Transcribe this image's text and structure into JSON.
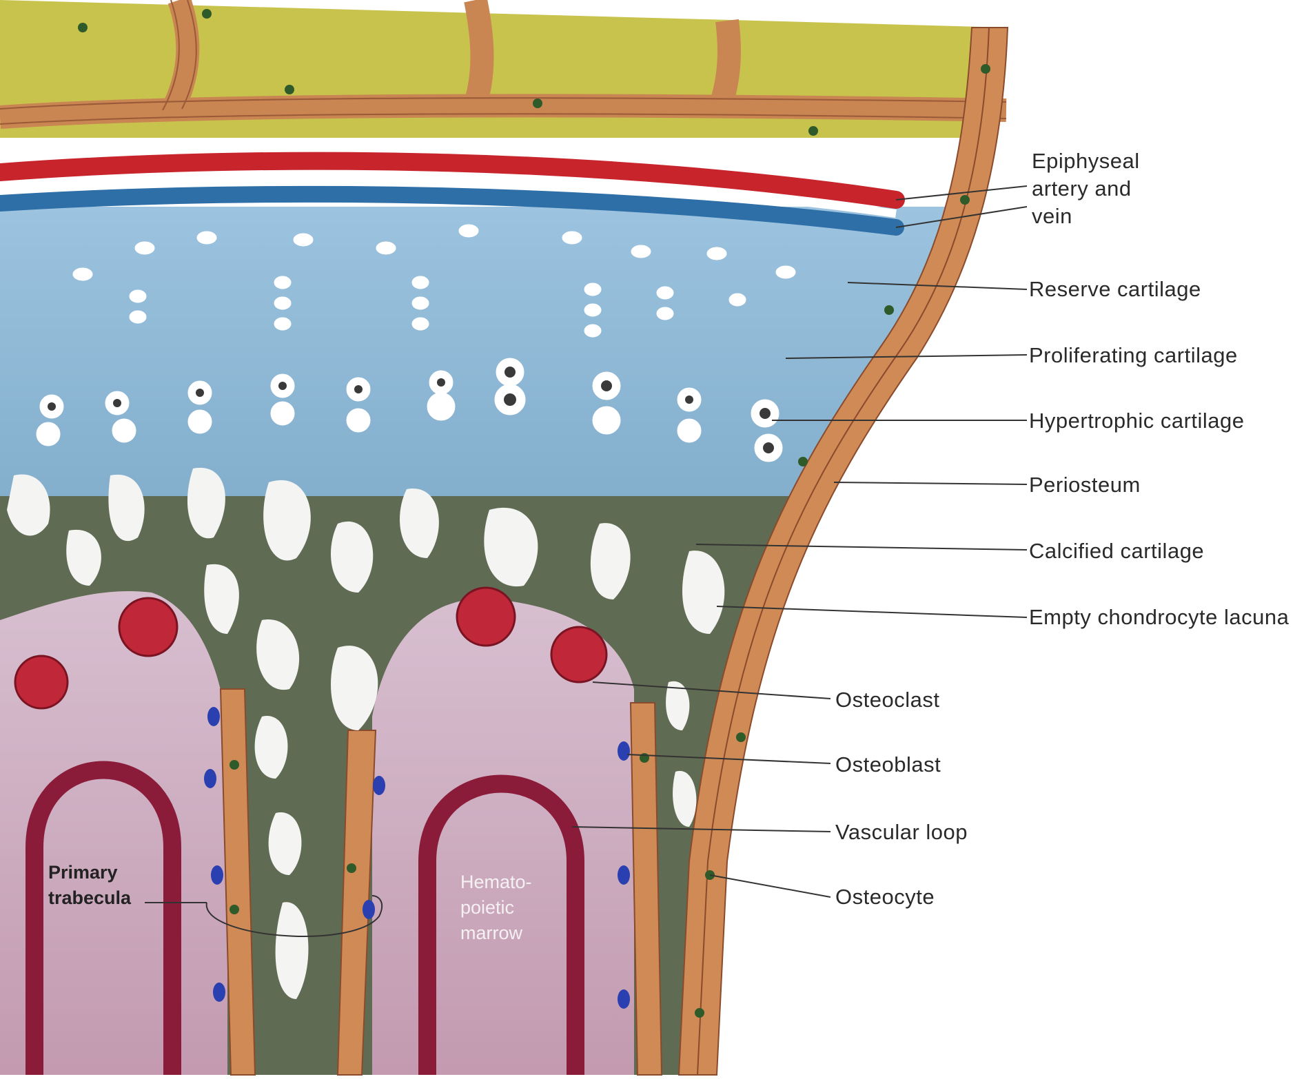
{
  "labels": {
    "epiphyseal": "Epiphyseal\nartery and\nvein",
    "reserve": "Reserve cartilage",
    "proliferating": "Proliferating cartilage",
    "hypertrophic": "Hypertrophic cartilage",
    "periosteum": "Periosteum",
    "calcified": "Calcified cartilage",
    "empty_lacuna": "Empty chondrocyte lacuna",
    "osteoclast": "Osteoclast",
    "osteoblast": "Osteoblast",
    "vascular_loop": "Vascular loop",
    "osteocyte": "Osteocyte",
    "primary_trabecula": "Primary\ntrabecula",
    "marrow": "Hemato-\npoietic\nmarrow"
  },
  "colors": {
    "marrow_yellow": "#c9c44a",
    "bone_orange": "#cf8a55",
    "artery_red": "#c8242c",
    "vein_blue": "#2f6fa8",
    "cartilage_blue": "#8db8d6",
    "calcified_green": "#5c6b52",
    "marrow_pink": "#c9a6b8",
    "vessel_maroon": "#8a1c3a",
    "osteoclast_red": "#c0283a",
    "osteoblast_blue": "#2a3fb0",
    "osteocyte_green": "#2f5a2a"
  }
}
